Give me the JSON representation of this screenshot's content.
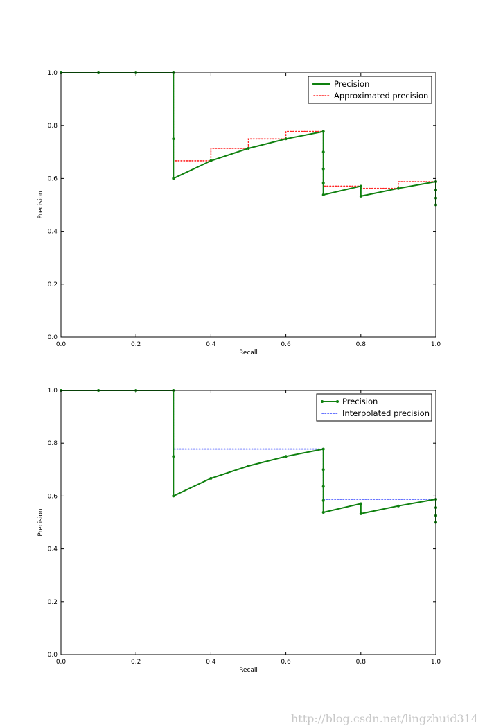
{
  "chart_data": [
    {
      "type": "line",
      "xlabel": "Recall",
      "ylabel": "Precision",
      "xlim": [
        0.0,
        1.0
      ],
      "ylim": [
        0.0,
        1.0
      ],
      "xticks": [
        "0.0",
        "0.2",
        "0.4",
        "0.6",
        "0.8",
        "1.0"
      ],
      "yticks": [
        "0.0",
        "0.2",
        "0.4",
        "0.6",
        "0.8",
        "1.0"
      ],
      "legend_position": "top-right",
      "series": [
        {
          "name": "Precision",
          "style": "solid-markers",
          "color": "#0e800e",
          "x": [
            0.0,
            0.1,
            0.2,
            0.3,
            0.3,
            0.3,
            0.4,
            0.5,
            0.6,
            0.7,
            0.7,
            0.7,
            0.7,
            0.7,
            0.8,
            0.8,
            0.9,
            1.0,
            1.0,
            1.0,
            1.0
          ],
          "y": [
            1.0,
            1.0,
            1.0,
            1.0,
            0.75,
            0.6,
            0.667,
            0.714,
            0.75,
            0.778,
            0.7,
            0.636,
            0.583,
            0.538,
            0.571,
            0.533,
            0.5625,
            0.588,
            0.556,
            0.526,
            0.5
          ]
        },
        {
          "name": "Approximated precision",
          "style": "dotted",
          "color": "#ff2222",
          "x": [
            0.0,
            0.3,
            0.3,
            0.4,
            0.4,
            0.5,
            0.5,
            0.6,
            0.6,
            0.7,
            0.7,
            0.8,
            0.8,
            0.9,
            0.9,
            1.0
          ],
          "y": [
            1.0,
            1.0,
            0.667,
            0.667,
            0.714,
            0.714,
            0.75,
            0.75,
            0.778,
            0.778,
            0.571,
            0.571,
            0.5625,
            0.5625,
            0.588,
            0.588
          ]
        }
      ]
    },
    {
      "type": "line",
      "xlabel": "Recall",
      "ylabel": "Precision",
      "xlim": [
        0.0,
        1.0
      ],
      "ylim": [
        0.0,
        1.0
      ],
      "xticks": [
        "0.0",
        "0.2",
        "0.4",
        "0.6",
        "0.8",
        "1.0"
      ],
      "yticks": [
        "0.0",
        "0.2",
        "0.4",
        "0.6",
        "0.8",
        "1.0"
      ],
      "legend_position": "top-right",
      "series": [
        {
          "name": "Precision",
          "style": "solid-markers",
          "color": "#0e800e",
          "x": [
            0.0,
            0.1,
            0.2,
            0.3,
            0.3,
            0.3,
            0.4,
            0.5,
            0.6,
            0.7,
            0.7,
            0.7,
            0.7,
            0.7,
            0.8,
            0.8,
            0.9,
            1.0,
            1.0,
            1.0,
            1.0
          ],
          "y": [
            1.0,
            1.0,
            1.0,
            1.0,
            0.75,
            0.6,
            0.667,
            0.714,
            0.75,
            0.778,
            0.7,
            0.636,
            0.583,
            0.538,
            0.571,
            0.533,
            0.5625,
            0.588,
            0.556,
            0.526,
            0.5
          ]
        },
        {
          "name": "Interpolated precision",
          "style": "dotted",
          "color": "#3344ff",
          "x": [
            0.0,
            0.3,
            0.3,
            0.7,
            0.7,
            1.0
          ],
          "y": [
            1.0,
            1.0,
            0.778,
            0.778,
            0.588,
            0.588
          ]
        }
      ]
    }
  ],
  "watermark": "http://blog.csdn.net/lingzhuid314"
}
